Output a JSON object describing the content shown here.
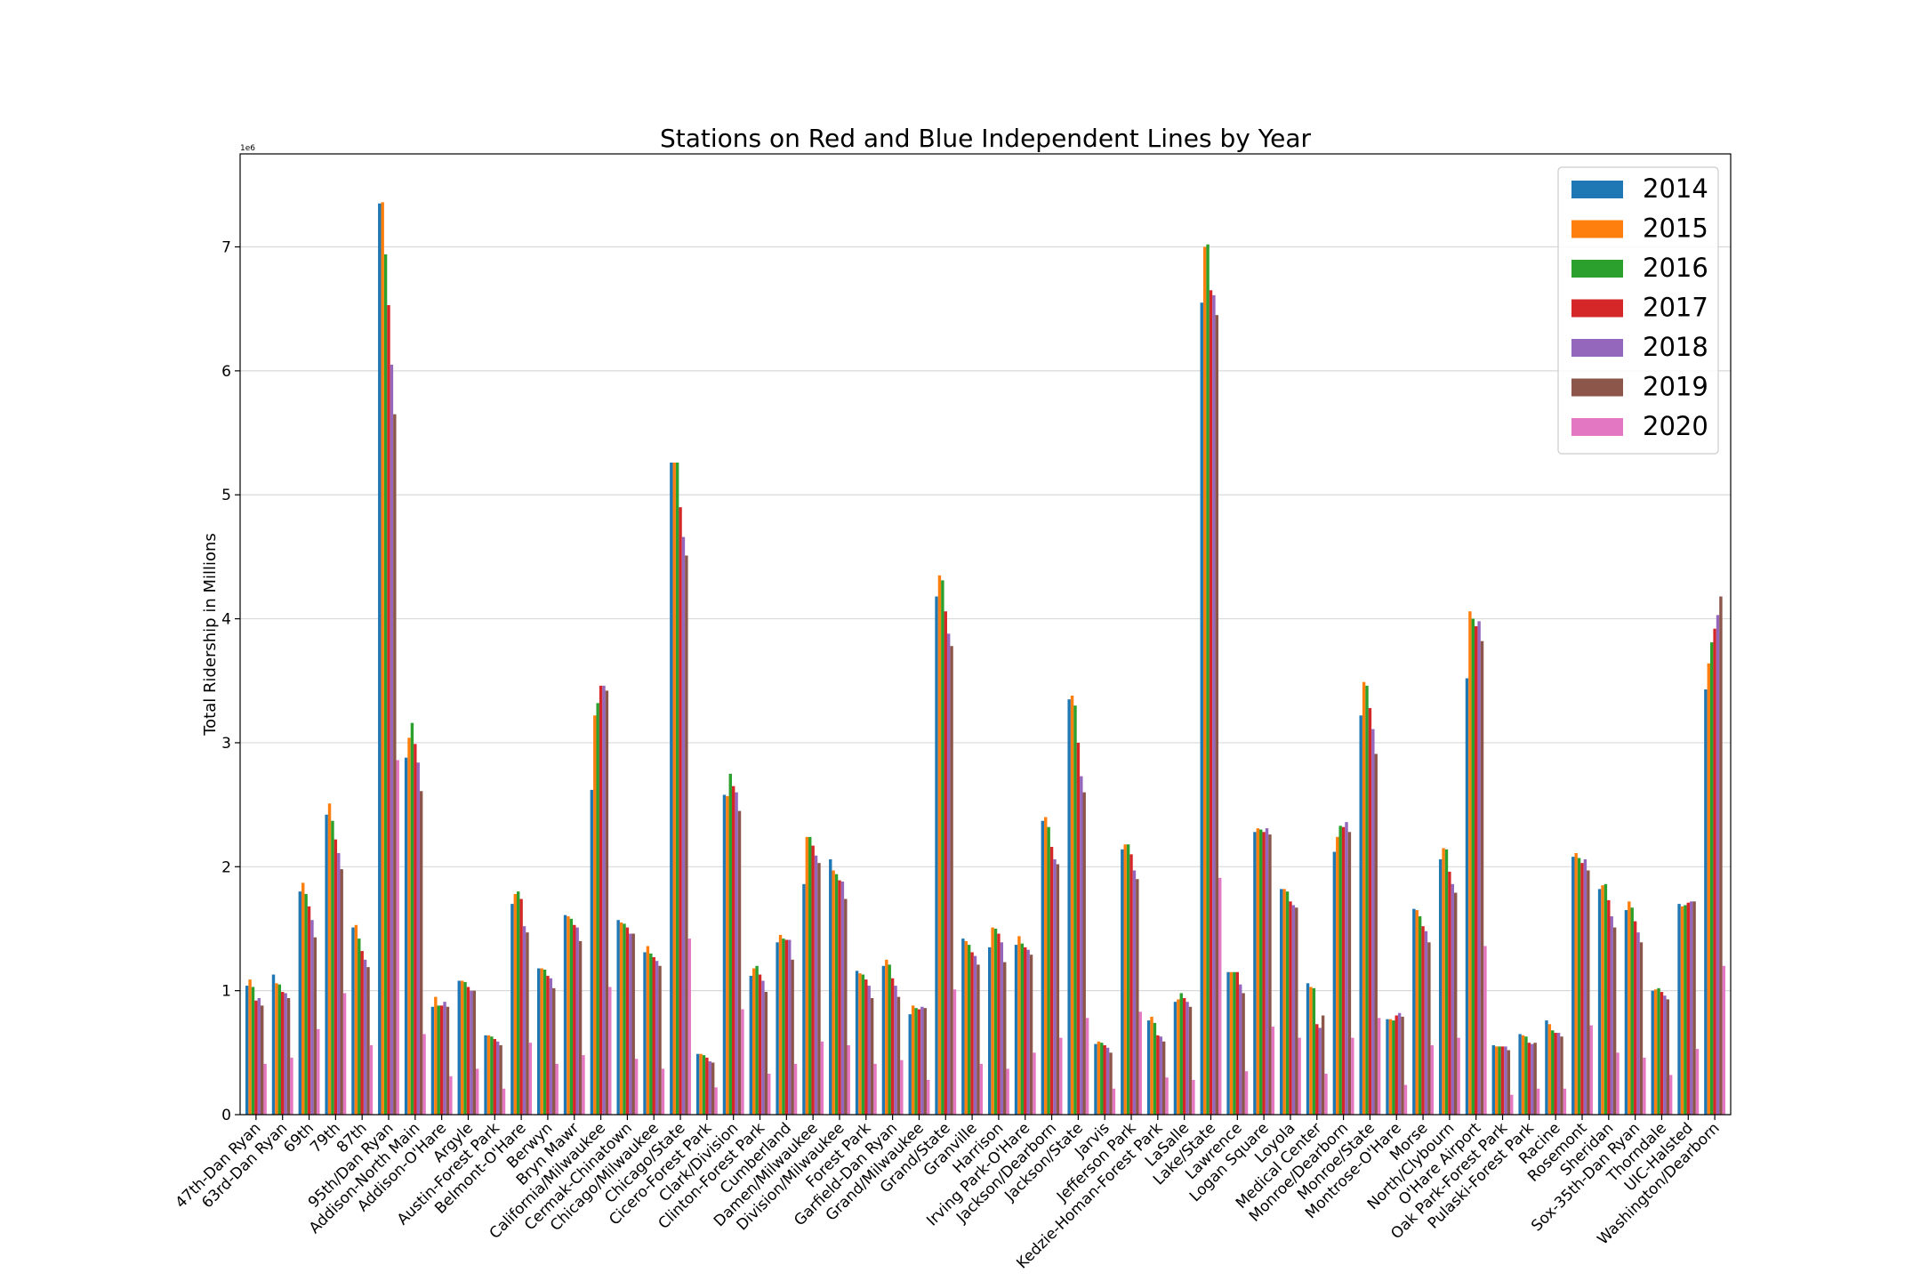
{
  "chart_data": {
    "type": "bar",
    "title": "Stations on Red and Blue Independent Lines by Year",
    "xlabel": "",
    "ylabel": "Total Ridership in Millions",
    "offset_text": "1e6",
    "ylim": [
      0,
      7750000
    ],
    "yticks": [
      0,
      1000000,
      2000000,
      3000000,
      4000000,
      5000000,
      6000000,
      7000000
    ],
    "ytick_labels": [
      "0",
      "1",
      "2",
      "3",
      "4",
      "5",
      "6",
      "7"
    ],
    "grid": "horizontal",
    "legend_position": "top-right",
    "categories": [
      "47th-Dan Ryan",
      "63rd-Dan Ryan",
      "69th",
      "79th",
      "87th",
      "95th/Dan Ryan",
      "Addison-North Main",
      "Addison-O'Hare",
      "Argyle",
      "Austin-Forest Park",
      "Belmont-O'Hare",
      "Berwyn",
      "Bryn Mawr",
      "California/Milwaukee",
      "Cermak-Chinatown",
      "Chicago/Milwaukee",
      "Chicago/State",
      "Cicero-Forest Park",
      "Clark/Division",
      "Clinton-Forest Park",
      "Cumberland",
      "Damen/Milwaukee",
      "Division/Milwaukee",
      "Forest Park",
      "Garfield-Dan Ryan",
      "Grand/Milwaukee",
      "Grand/State",
      "Granville",
      "Harrison",
      "Irving Park-O'Hare",
      "Jackson/Dearborn",
      "Jackson/State",
      "Jarvis",
      "Jefferson Park",
      "Kedzie-Homan-Forest Park",
      "LaSalle",
      "Lake/State",
      "Lawrence",
      "Logan Square",
      "Loyola",
      "Medical Center",
      "Monroe/Dearborn",
      "Monroe/State",
      "Montrose-O'Hare",
      "Morse",
      "North/Clybourn",
      "O'Hare Airport",
      "Oak Park-Forest Park",
      "Pulaski-Forest Park",
      "Racine",
      "Rosemont",
      "Sheridan",
      "Sox-35th-Dan Ryan",
      "Thorndale",
      "UIC-Halsted",
      "Washington/Dearborn"
    ],
    "series": [
      {
        "name": "2014",
        "color": "#1f77b4",
        "values": [
          1040000,
          1130000,
          1800000,
          2420000,
          1510000,
          7350000,
          2880000,
          870000,
          1080000,
          640000,
          1700000,
          1180000,
          1610000,
          2620000,
          1570000,
          1310000,
          5260000,
          490000,
          2580000,
          1120000,
          1390000,
          1860000,
          2060000,
          1160000,
          1200000,
          810000,
          4180000,
          1420000,
          1350000,
          1370000,
          2370000,
          3350000,
          570000,
          2140000,
          760000,
          910000,
          6550000,
          1150000,
          2280000,
          1820000,
          1060000,
          2120000,
          3220000,
          770000,
          1660000,
          2060000,
          3520000,
          560000,
          650000,
          760000,
          2080000,
          1820000,
          1650000,
          1000000,
          1700000,
          3430000
        ]
      },
      {
        "name": "2015",
        "color": "#ff7f0e",
        "values": [
          1090000,
          1060000,
          1870000,
          2510000,
          1530000,
          7360000,
          3040000,
          950000,
          1080000,
          640000,
          1780000,
          1180000,
          1600000,
          3220000,
          1550000,
          1360000,
          5260000,
          490000,
          2570000,
          1180000,
          1450000,
          2240000,
          1970000,
          1140000,
          1250000,
          880000,
          4350000,
          1400000,
          1510000,
          1440000,
          2400000,
          3380000,
          590000,
          2180000,
          790000,
          930000,
          7000000,
          1150000,
          2310000,
          1820000,
          1030000,
          2240000,
          3490000,
          770000,
          1650000,
          2150000,
          4060000,
          550000,
          640000,
          730000,
          2110000,
          1850000,
          1720000,
          1010000,
          1680000,
          3640000
        ]
      },
      {
        "name": "2016",
        "color": "#2ca02c",
        "values": [
          1030000,
          1050000,
          1780000,
          2370000,
          1420000,
          6940000,
          3160000,
          880000,
          1070000,
          630000,
          1800000,
          1170000,
          1580000,
          3320000,
          1540000,
          1300000,
          5260000,
          480000,
          2750000,
          1200000,
          1420000,
          2240000,
          1940000,
          1130000,
          1210000,
          860000,
          4310000,
          1370000,
          1500000,
          1380000,
          2320000,
          3300000,
          580000,
          2180000,
          740000,
          980000,
          7020000,
          1150000,
          2300000,
          1800000,
          1020000,
          2330000,
          3460000,
          760000,
          1600000,
          2140000,
          4000000,
          550000,
          630000,
          680000,
          2070000,
          1860000,
          1670000,
          1020000,
          1690000,
          3810000
        ]
      },
      {
        "name": "2017",
        "color": "#d62728",
        "values": [
          920000,
          990000,
          1680000,
          2220000,
          1320000,
          6530000,
          2990000,
          880000,
          1030000,
          610000,
          1740000,
          1120000,
          1530000,
          3460000,
          1510000,
          1270000,
          4900000,
          460000,
          2650000,
          1130000,
          1410000,
          2170000,
          1890000,
          1090000,
          1100000,
          850000,
          4060000,
          1310000,
          1460000,
          1350000,
          2160000,
          3000000,
          560000,
          2100000,
          640000,
          940000,
          6650000,
          1150000,
          2280000,
          1720000,
          730000,
          2320000,
          3280000,
          800000,
          1520000,
          1960000,
          3940000,
          550000,
          580000,
          660000,
          2030000,
          1730000,
          1560000,
          990000,
          1710000,
          3920000
        ]
      },
      {
        "name": "2018",
        "color": "#9467bd",
        "values": [
          940000,
          980000,
          1570000,
          2110000,
          1250000,
          6050000,
          2840000,
          910000,
          1000000,
          590000,
          1520000,
          1100000,
          1510000,
          3460000,
          1460000,
          1240000,
          4660000,
          430000,
          2600000,
          1080000,
          1410000,
          2090000,
          1880000,
          1040000,
          1040000,
          870000,
          3880000,
          1280000,
          1390000,
          1330000,
          2060000,
          2730000,
          540000,
          1970000,
          630000,
          910000,
          6610000,
          1050000,
          2310000,
          1690000,
          700000,
          2360000,
          3110000,
          820000,
          1480000,
          1860000,
          3980000,
          550000,
          570000,
          660000,
          2060000,
          1600000,
          1470000,
          960000,
          1720000,
          4030000
        ]
      },
      {
        "name": "2019",
        "color": "#8c564b",
        "values": [
          880000,
          940000,
          1430000,
          1980000,
          1190000,
          5650000,
          2610000,
          870000,
          1000000,
          560000,
          1470000,
          1020000,
          1400000,
          3420000,
          1460000,
          1200000,
          4510000,
          420000,
          2450000,
          990000,
          1250000,
          2030000,
          1740000,
          940000,
          950000,
          860000,
          3780000,
          1210000,
          1230000,
          1290000,
          2020000,
          2600000,
          500000,
          1900000,
          590000,
          870000,
          6450000,
          980000,
          2260000,
          1670000,
          800000,
          2280000,
          2910000,
          790000,
          1390000,
          1790000,
          3820000,
          520000,
          580000,
          630000,
          1970000,
          1510000,
          1390000,
          930000,
          1720000,
          4180000
        ]
      },
      {
        "name": "2020",
        "color": "#e377c2",
        "values": [
          410000,
          460000,
          690000,
          980000,
          560000,
          2860000,
          650000,
          310000,
          370000,
          210000,
          580000,
          410000,
          480000,
          1030000,
          450000,
          370000,
          1420000,
          220000,
          850000,
          330000,
          410000,
          590000,
          560000,
          410000,
          440000,
          280000,
          1010000,
          410000,
          370000,
          500000,
          620000,
          780000,
          210000,
          830000,
          300000,
          280000,
          1910000,
          350000,
          710000,
          620000,
          330000,
          620000,
          780000,
          240000,
          560000,
          620000,
          1360000,
          160000,
          210000,
          210000,
          720000,
          500000,
          460000,
          320000,
          530000,
          1200000
        ]
      }
    ]
  }
}
